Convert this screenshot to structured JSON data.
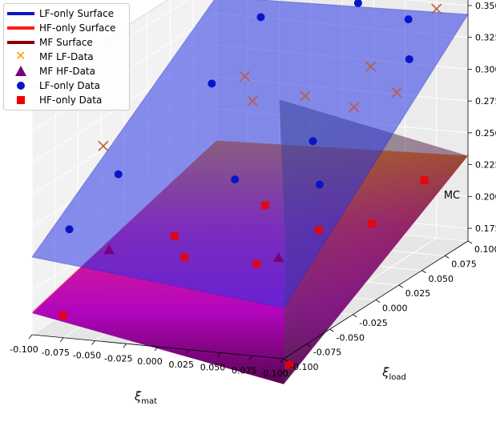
{
  "chart_data": {
    "type": "surface3d",
    "title": "",
    "xlabel": "ξ_mat",
    "ylabel": "ξ_load",
    "zlabel": "MC",
    "xlim": [
      -0.1,
      0.1
    ],
    "ylim": [
      -0.1,
      0.1
    ],
    "zlim": [
      0.165,
      0.36
    ],
    "x_ticks": [
      "-0.100",
      "-0.075",
      "-0.050",
      "-0.025",
      "0.000",
      "0.025",
      "0.050",
      "0.075",
      "0.100"
    ],
    "y_ticks": [
      "-0.100",
      "-0.075",
      "-0.050",
      "-0.025",
      "0.000",
      "0.025",
      "0.050",
      "0.075",
      "0.100"
    ],
    "z_ticks": [
      "0.175",
      "0.200",
      "0.225",
      "0.250",
      "0.275",
      "0.300",
      "0.325",
      "0.350"
    ],
    "grid": true,
    "legend_position": "top-left",
    "legend": [
      {
        "label": "LF-only Surface",
        "kind": "line",
        "color": "#0a14c8"
      },
      {
        "label": "HF-only Surface",
        "kind": "line",
        "color": "#ff1a1a"
      },
      {
        "label": "MF Surface",
        "kind": "line",
        "color": "#8b0000"
      },
      {
        "label": "MF LF-Data",
        "kind": "x",
        "color": "#ff9900"
      },
      {
        "label": "MF HF-Data",
        "kind": "triangle",
        "color": "#7a007a"
      },
      {
        "label": "LF-only Data",
        "kind": "circle",
        "color": "#0a14c8"
      },
      {
        "label": "HF-only Data",
        "kind": "square",
        "color": "#ee0000"
      }
    ],
    "surfaces": [
      {
        "name": "LF-only Surface",
        "z_corners": {
          "xmin_ymin": 0.226,
          "xmax_ymin": 0.205,
          "xmin_ymax": 0.338,
          "xmax_ymax": 0.343
        }
      },
      {
        "name": "HF-only Surface",
        "z_corners": {
          "xmin_ymin": 0.183,
          "xmax_ymin": 0.145,
          "xmin_ymax": 0.225,
          "xmax_ymax": 0.232
        }
      },
      {
        "name": "MF Surface",
        "z_corners": {
          "xmin_ymin": 0.182,
          "xmax_ymin": 0.145,
          "xmin_ymax": 0.225,
          "xmax_ymax": 0.232
        }
      }
    ],
    "series": [
      {
        "name": "MF LF-Data",
        "points": [
          [
            -0.08,
            -0.05,
            0.292
          ],
          [
            -0.07,
            0.09,
            0.283
          ],
          [
            -0.02,
            0.03,
            0.296
          ],
          [
            0.0,
            0.06,
            0.288
          ],
          [
            0.03,
            0.09,
            0.3
          ],
          [
            0.08,
            0.05,
            0.303
          ],
          [
            0.09,
            -0.01,
            0.32
          ],
          [
            0.075,
            0.1,
            0.345
          ]
        ]
      },
      {
        "name": "MF HF-Data",
        "points": [
          [
            -0.09,
            -0.03,
            0.2
          ],
          [
            0.03,
            -0.01,
            0.196
          ]
        ]
      },
      {
        "name": "LF-only Data",
        "points": [
          [
            -0.09,
            -0.02,
            0.255
          ],
          [
            -0.085,
            -0.08,
            0.24
          ],
          [
            -0.05,
            0.08,
            0.336
          ],
          [
            -0.045,
            0.02,
            0.312
          ],
          [
            0.01,
            -0.03,
            0.265
          ],
          [
            0.02,
            0.09,
            0.349
          ],
          [
            0.05,
            0.0,
            0.285
          ],
          [
            0.06,
            0.09,
            0.34
          ],
          [
            0.07,
            -0.02,
            0.262
          ],
          [
            0.09,
            0.05,
            0.33
          ]
        ]
      },
      {
        "name": "HF-only Data",
        "points": [
          [
            -0.09,
            -0.08,
            0.172
          ],
          [
            -0.06,
            0.0,
            0.2
          ],
          [
            -0.03,
            -0.03,
            0.2
          ],
          [
            -0.01,
            0.03,
            0.215
          ],
          [
            0.02,
            -0.02,
            0.195
          ],
          [
            0.04,
            0.02,
            0.205
          ],
          [
            0.06,
            0.05,
            0.198
          ],
          [
            0.09,
            -0.08,
            0.15
          ],
          [
            0.08,
            0.08,
            0.22
          ]
        ]
      }
    ]
  }
}
